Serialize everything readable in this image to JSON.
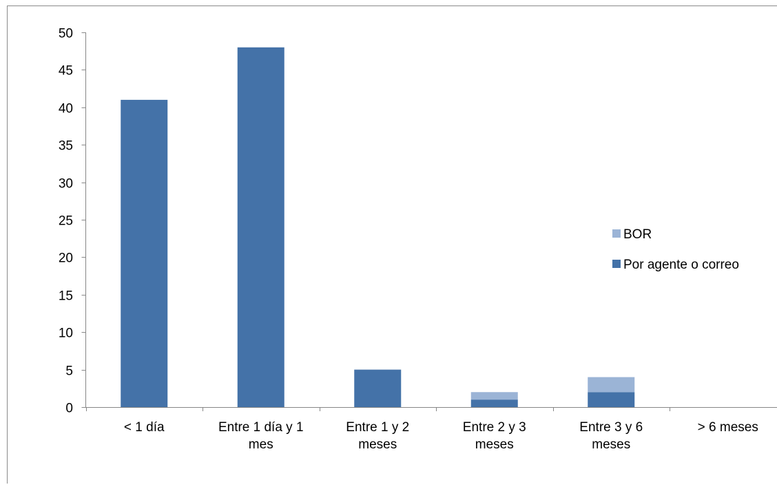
{
  "chart_data": {
    "type": "bar",
    "stacked": true,
    "categories": [
      [
        "< 1 día"
      ],
      [
        "Entre 1 día y 1",
        "mes"
      ],
      [
        "Entre 1 y 2",
        "meses"
      ],
      [
        "Entre 2 y 3",
        "meses"
      ],
      [
        "Entre 3 y 6",
        "meses"
      ],
      [
        "> 6 meses"
      ]
    ],
    "series": [
      {
        "name": "Por agente o correo",
        "values": [
          41,
          48,
          5,
          1,
          2,
          0
        ],
        "color": "#4472A8"
      },
      {
        "name": "BOR",
        "values": [
          0,
          0,
          0,
          1,
          2,
          0
        ],
        "color": "#9BB4D6"
      }
    ],
    "y_ticks": [
      "0",
      "5",
      "10",
      "15",
      "20",
      "25",
      "30",
      "35",
      "40",
      "45",
      "50"
    ],
    "ylim": [
      0,
      50
    ],
    "title": "",
    "xlabel": "",
    "ylabel": "",
    "grid": false,
    "legend_position": "right"
  }
}
